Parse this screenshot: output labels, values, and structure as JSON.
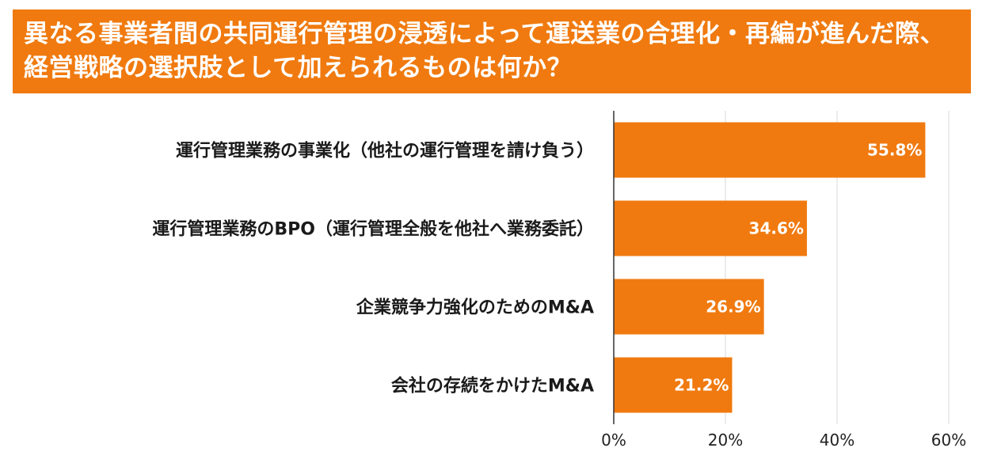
{
  "title": "異なる事業者間の共同運行管理の浸透によって運送業の合理化・再編が進んだ際、経営戦略の選択肢として加えられるものは何か？",
  "colors": {
    "accent": "#f07a0f",
    "grid": "#d9d9d9",
    "axis": "#333333"
  },
  "chart_data": {
    "type": "bar",
    "orientation": "horizontal",
    "title": "異なる事業者間の共同運行管理の浸透によって運送業の合理化・再編が進んだ際、経営戦略の選択肢として加えられるものは何か？",
    "categories": [
      "運行管理業務の事業化（他社の運行管理を請け負う）",
      "運行管理業務のBPO（運行管理全般を他社へ業務委託）",
      "企業競争力強化のためのM&A",
      "会社の存続をかけたM&A"
    ],
    "values": [
      55.8,
      34.6,
      26.9,
      21.2
    ],
    "value_labels": [
      "55.8%",
      "34.6%",
      "26.9%",
      "21.2%"
    ],
    "xticks": [
      "0%",
      "20%",
      "40%",
      "60%"
    ],
    "xlim": [
      0,
      60
    ],
    "grid": true,
    "legend": "none"
  }
}
